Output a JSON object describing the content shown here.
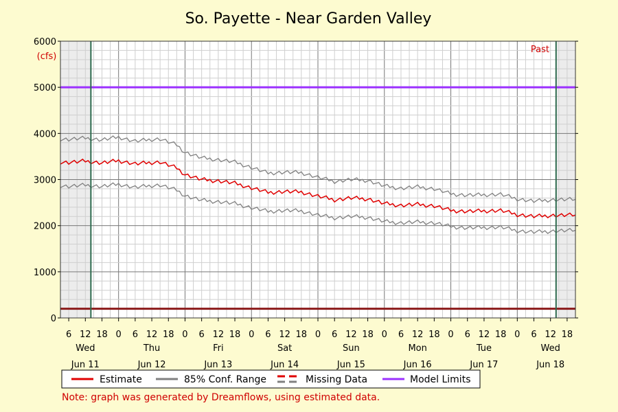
{
  "chart_data": {
    "type": "line",
    "title": "So. Payette - Near Garden Valley",
    "y_unit": "(cfs)",
    "ylim": [
      0,
      6000
    ],
    "yticks": [
      0,
      1000,
      2000,
      3000,
      4000,
      5000,
      6000
    ],
    "x_start": "Jun 11 03:00",
    "x_end": "Jun 18 21:00",
    "hour_tick_labels": [
      "6",
      "12",
      "18",
      "0"
    ],
    "day_labels": [
      {
        "weekday": "Wed",
        "date": "Jun 11"
      },
      {
        "weekday": "Thu",
        "date": "Jun 12"
      },
      {
        "weekday": "Fri",
        "date": "Jun 13"
      },
      {
        "weekday": "Sat",
        "date": "Jun 14"
      },
      {
        "weekday": "Sun",
        "date": "Jun 15"
      },
      {
        "weekday": "Mon",
        "date": "Jun 16"
      },
      {
        "weekday": "Tue",
        "date": "Jun 17"
      },
      {
        "weekday": "Wed",
        "date": "Jun 18"
      }
    ],
    "past_label": "Past",
    "past_markers": [
      "Jun 11 14:00",
      "Jun 18 14:00"
    ],
    "shaded_ranges": [
      [
        "Jun 11 03:00",
        "Jun 11 14:00"
      ],
      [
        "Jun 18 14:00",
        "Jun 18 21:00"
      ]
    ],
    "model_limits": {
      "upper": 5000,
      "lower": 200
    },
    "series": [
      {
        "name": "Estimate",
        "color": "#e00000",
        "x": [
          "Jun 11 03:00",
          "Jun 11 06:00",
          "Jun 11 12:00",
          "Jun 11 18:00",
          "Jun 12 00:00",
          "Jun 12 06:00",
          "Jun 12 12:00",
          "Jun 12 15:00",
          "Jun 12 21:00",
          "Jun 13 00:00",
          "Jun 13 06:00",
          "Jun 13 12:00",
          "Jun 13 18:00",
          "Jun 14 00:00",
          "Jun 14 06:00",
          "Jun 14 12:00",
          "Jun 14 18:00",
          "Jun 15 00:00",
          "Jun 15 06:00",
          "Jun 15 12:00",
          "Jun 15 18:00",
          "Jun 16 00:00",
          "Jun 16 06:00",
          "Jun 16 12:00",
          "Jun 16 18:00",
          "Jun 17 00:00",
          "Jun 17 06:00",
          "Jun 17 12:00",
          "Jun 17 18:00",
          "Jun 18 00:00",
          "Jun 18 06:00",
          "Jun 18 12:00",
          "Jun 18 21:00"
        ],
        "values": [
          3380,
          3370,
          3400,
          3360,
          3410,
          3340,
          3370,
          3380,
          3250,
          3110,
          3000,
          2970,
          2920,
          2820,
          2720,
          2740,
          2730,
          2640,
          2560,
          2600,
          2580,
          2480,
          2440,
          2460,
          2430,
          2330,
          2310,
          2320,
          2330,
          2240,
          2200,
          2220,
          2230
        ]
      },
      {
        "name": "85% Conf. Range",
        "color": "#808080",
        "x": [
          "Jun 11 03:00",
          "Jun 11 06:00",
          "Jun 11 12:00",
          "Jun 11 18:00",
          "Jun 12 00:00",
          "Jun 12 06:00",
          "Jun 12 12:00",
          "Jun 12 15:00",
          "Jun 12 21:00",
          "Jun 13 00:00",
          "Jun 13 06:00",
          "Jun 13 12:00",
          "Jun 13 18:00",
          "Jun 14 00:00",
          "Jun 14 06:00",
          "Jun 14 12:00",
          "Jun 14 18:00",
          "Jun 15 00:00",
          "Jun 15 06:00",
          "Jun 15 12:00",
          "Jun 15 18:00",
          "Jun 16 00:00",
          "Jun 16 06:00",
          "Jun 16 12:00",
          "Jun 16 18:00",
          "Jun 17 00:00",
          "Jun 17 06:00",
          "Jun 17 12:00",
          "Jun 17 18:00",
          "Jun 18 00:00",
          "Jun 18 06:00",
          "Jun 18 12:00",
          "Jun 18 21:00"
        ],
        "upper": [
          3880,
          3870,
          3900,
          3860,
          3920,
          3830,
          3870,
          3880,
          3750,
          3590,
          3470,
          3430,
          3380,
          3260,
          3140,
          3160,
          3150,
          3050,
          2960,
          3000,
          2980,
          2860,
          2810,
          2840,
          2800,
          2690,
          2660,
          2670,
          2680,
          2580,
          2530,
          2560,
          2570
        ],
        "lower": [
          2870,
          2850,
          2880,
          2850,
          2900,
          2830,
          2870,
          2880,
          2770,
          2650,
          2550,
          2520,
          2480,
          2390,
          2310,
          2330,
          2320,
          2230,
          2170,
          2200,
          2180,
          2090,
          2060,
          2080,
          2060,
          1980,
          1950,
          1960,
          1970,
          1890,
          1860,
          1880,
          1900
        ]
      }
    ],
    "legend": [
      {
        "label": "Estimate",
        "color": "#e00000",
        "style": "solid"
      },
      {
        "label": "85% Conf. Range",
        "color": "#808080",
        "style": "solid"
      },
      {
        "label": "Missing Data",
        "color": "#e00000",
        "color2": "#808080",
        "style": "dashed"
      },
      {
        "label": "Model Limits",
        "color": "#9b30ff",
        "style": "solid"
      }
    ],
    "upper_limit_color": "#9b30ff",
    "lower_limit_color": "#8b1a1a",
    "grid": true,
    "legend_placement": "bottom"
  },
  "note": "Note: graph was generated by Dreamflows, using estimated data."
}
